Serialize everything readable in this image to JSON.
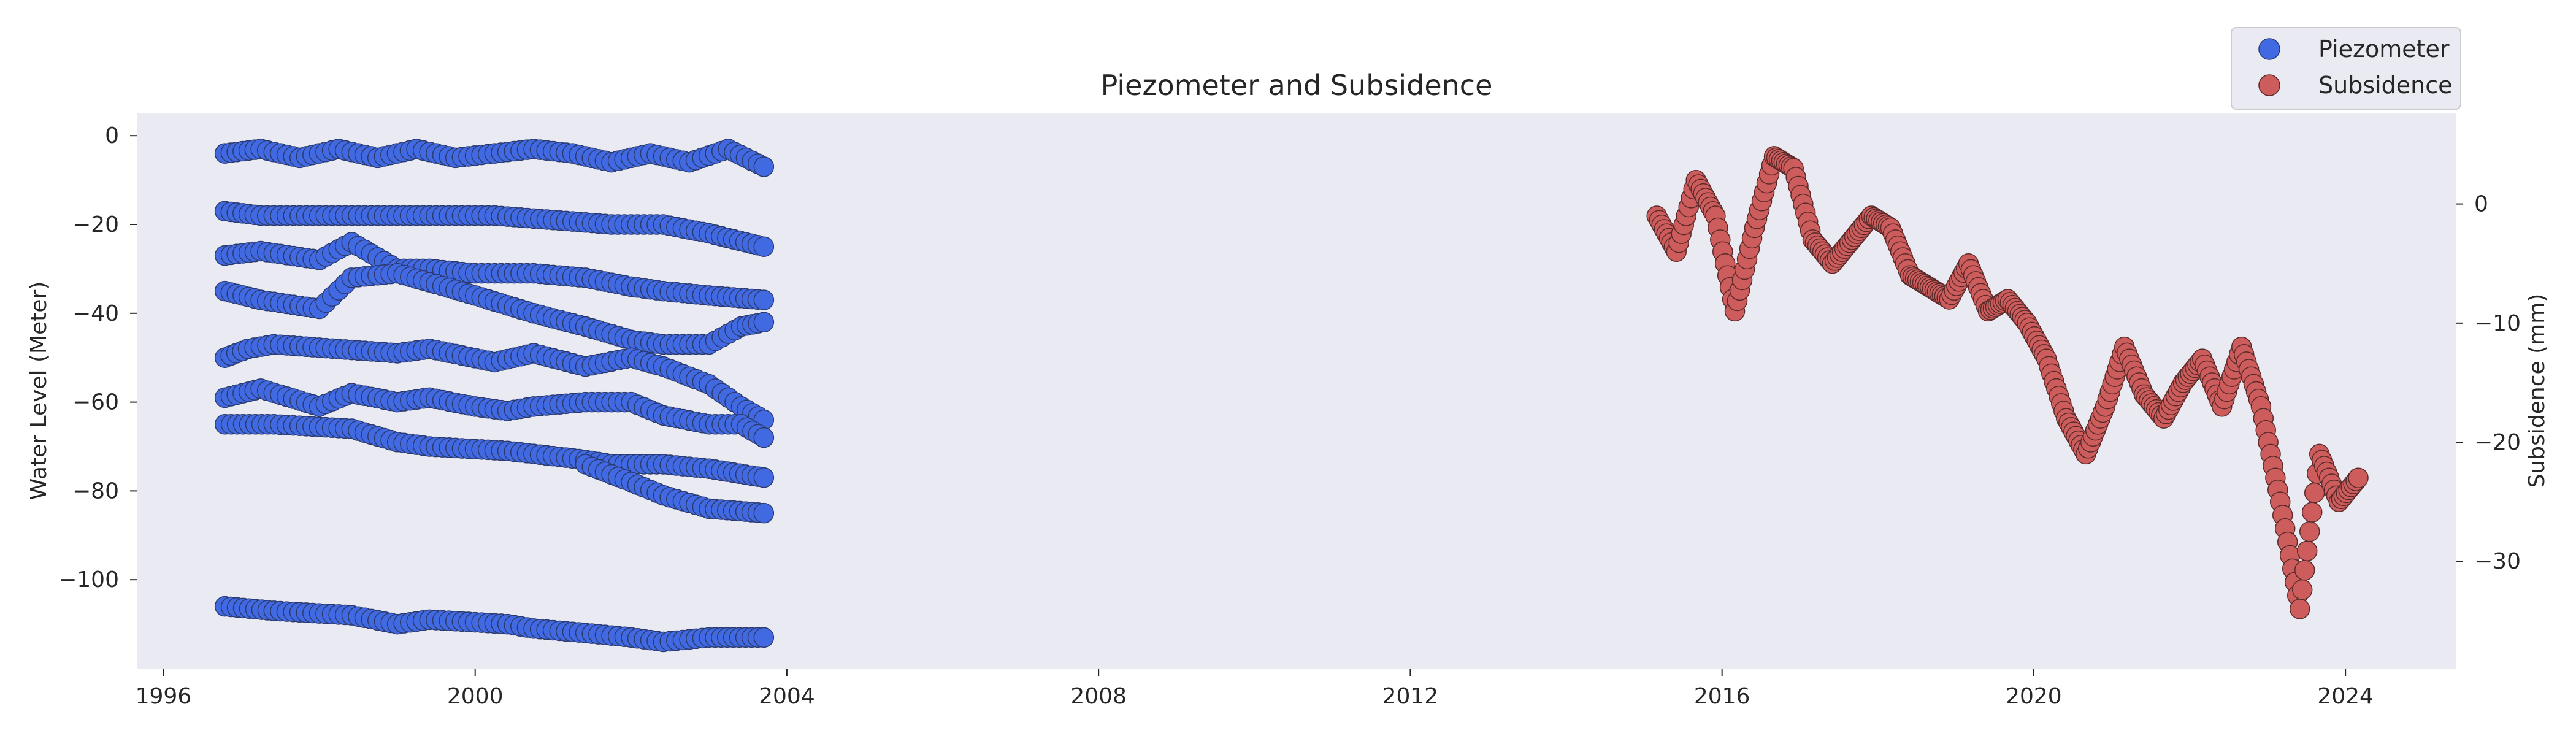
{
  "chart_data": {
    "type": "scatter",
    "title": "Piezometer and Subsidence",
    "xlabel": "",
    "ylabel_left": "Water Level (Meter)",
    "ylabel_right": "Subsidence (mm)",
    "x_range": [
      "1995-09-01",
      "2025-06-01"
    ],
    "y_left_range": [
      -120,
      5
    ],
    "y_right_range": [
      -39,
      7.6
    ],
    "x_ticks": [
      "1996",
      "2000",
      "2004",
      "2008",
      "2012",
      "2016",
      "2020",
      "2024"
    ],
    "y_left_ticks": [
      0,
      -20,
      -40,
      -60,
      -80,
      -100
    ],
    "y_left_tick_labels": [
      "0",
      "−20",
      "−40",
      "−60",
      "−80",
      "−100"
    ],
    "y_right_ticks": [
      0,
      -10,
      -20,
      -30
    ],
    "y_right_tick_labels": [
      "0",
      "−10",
      "−20",
      "−30"
    ],
    "grid": false,
    "legend_position": "top-right",
    "legend": [
      {
        "label": "Piezometer",
        "color": "#4169E1"
      },
      {
        "label": "Subsidence",
        "color": "#CD5C5C"
      }
    ],
    "series": [
      {
        "name": "Piezometer",
        "axis": "left",
        "color": "#4169E1",
        "edge_color": "#2b3a6e",
        "tracks": [
          {
            "dates": [
              "1996-10-15",
              "1997-04-01",
              "1997-10-01",
              "1998-04-01",
              "1998-10-01",
              "1999-04-01",
              "1999-10-01",
              "2000-04-01",
              "2000-10-01",
              "2001-04-01",
              "2001-10-01",
              "2002-04-01",
              "2002-10-01",
              "2003-04-01",
              "2003-09-15"
            ],
            "values": [
              -4,
              -3,
              -5,
              -3,
              -5,
              -3,
              -5,
              -4,
              -3,
              -4,
              -6,
              -4,
              -6,
              -3,
              -7
            ]
          },
          {
            "dates": [
              "1996-10-15",
              "1997-04-01",
              "1998-01-01",
              "1998-10-01",
              "1999-06-01",
              "2000-04-01",
              "2001-01-01",
              "2001-10-01",
              "2002-06-01",
              "2003-01-01",
              "2003-09-15"
            ],
            "values": [
              -17,
              -18,
              -18,
              -18,
              -18,
              -18,
              -19,
              -20,
              -20,
              -22,
              -25
            ]
          },
          {
            "dates": [
              "1996-10-15",
              "1997-04-01",
              "1998-01-01",
              "1998-06-01",
              "1999-01-01",
              "1999-06-01",
              "2000-01-01",
              "2000-10-01",
              "2001-06-01",
              "2002-01-01",
              "2002-06-01",
              "2003-01-01",
              "2003-09-15"
            ],
            "values": [
              -27,
              -26,
              -28,
              -24,
              -30,
              -30,
              -31,
              -31,
              -32,
              -34,
              -35,
              -36,
              -37
            ]
          },
          {
            "dates": [
              "1996-10-15",
              "1997-04-01",
              "1998-01-01",
              "1998-06-01",
              "1999-01-01",
              "1999-06-01",
              "2000-01-01",
              "2000-10-01",
              "2001-06-01",
              "2002-01-01",
              "2002-06-01",
              "2003-01-01",
              "2003-06-01",
              "2003-09-15"
            ],
            "values": [
              -35,
              -37,
              -39,
              -32,
              -31,
              -33,
              -36,
              -40,
              -43,
              -46,
              -47,
              -47,
              -43,
              -42
            ]
          },
          {
            "dates": [
              "1996-10-15",
              "1997-02-01",
              "1997-06-01",
              "1999-01-01",
              "1999-06-01",
              "2000-04-01",
              "2000-10-01",
              "2001-06-01",
              "2002-01-01",
              "2002-06-01",
              "2003-01-01",
              "2003-06-01",
              "2003-09-15"
            ],
            "values": [
              -50,
              -48,
              -47,
              -49,
              -48,
              -51,
              -49,
              -52,
              -50,
              -52,
              -56,
              -61,
              -64
            ]
          },
          {
            "dates": [
              "1996-10-15",
              "1997-04-01",
              "1998-01-01",
              "1998-06-01",
              "1999-01-01",
              "1999-06-01",
              "2000-01-01",
              "2000-06-01",
              "2000-10-01",
              "2001-06-01",
              "2002-01-01",
              "2002-06-01",
              "2003-01-01",
              "2003-06-01",
              "2003-09-15"
            ],
            "values": [
              -59,
              -57,
              -61,
              -58,
              -60,
              -59,
              -61,
              -62,
              -61,
              -60,
              -60,
              -63,
              -65,
              -65,
              -68
            ]
          },
          {
            "dates": [
              "1996-10-15",
              "1997-06-01",
              "1998-06-01",
              "1999-01-01",
              "1999-06-01",
              "2000-06-01",
              "2001-06-01",
              "2001-10-01",
              "2002-06-01",
              "2003-01-01",
              "2003-09-15"
            ],
            "values": [
              -65,
              -65,
              -66,
              -69,
              -70,
              -71,
              -73,
              -74,
              -74,
              -75,
              -77
            ]
          },
          {
            "dates": [
              "2001-06-01",
              "2002-01-01",
              "2002-06-01",
              "2003-01-01",
              "2003-09-15"
            ],
            "values": [
              -74,
              -78,
              -81,
              -84,
              -85
            ]
          },
          {
            "dates": [
              "1996-10-15",
              "1997-06-01",
              "1998-06-01",
              "1999-01-01",
              "1999-06-01",
              "2000-06-01",
              "2000-10-01",
              "2001-06-01",
              "2002-01-01",
              "2002-06-01",
              "2003-01-01",
              "2003-09-15"
            ],
            "values": [
              -106,
              -107,
              -108,
              -110,
              -109,
              -110,
              -111,
              -112,
              -113,
              -114,
              -113,
              -113
            ]
          }
        ]
      },
      {
        "name": "Subsidence",
        "axis": "right",
        "color": "#CD5C5C",
        "edge_color": "#5a2a2a",
        "dates": [
          "2015-03-01",
          "2015-06-01",
          "2015-09-01",
          "2015-12-01",
          "2016-03-01",
          "2016-06-01",
          "2016-09-01",
          "2016-12-01",
          "2017-03-01",
          "2017-06-01",
          "2017-09-01",
          "2017-12-01",
          "2018-03-01",
          "2018-06-01",
          "2018-09-01",
          "2018-12-01",
          "2019-03-01",
          "2019-06-01",
          "2019-09-01",
          "2019-12-01",
          "2020-03-01",
          "2020-06-01",
          "2020-09-01",
          "2020-12-01",
          "2021-03-01",
          "2021-06-01",
          "2021-09-01",
          "2021-12-01",
          "2022-03-01",
          "2022-06-01",
          "2022-09-01",
          "2022-12-01",
          "2023-03-01",
          "2023-06-01",
          "2023-09-01",
          "2023-12-01",
          "2024-03-01"
        ],
        "values": [
          -1,
          -4,
          2,
          -1,
          -9,
          -2,
          4,
          3,
          -3,
          -5,
          -3,
          -1,
          -2,
          -6,
          -7,
          -8,
          -5,
          -9,
          -8,
          -10,
          -13,
          -18,
          -21,
          -17,
          -12,
          -16,
          -18,
          -15,
          -13,
          -17,
          -12,
          -17,
          -25,
          -34,
          -21,
          -25,
          -23
        ]
      }
    ]
  }
}
